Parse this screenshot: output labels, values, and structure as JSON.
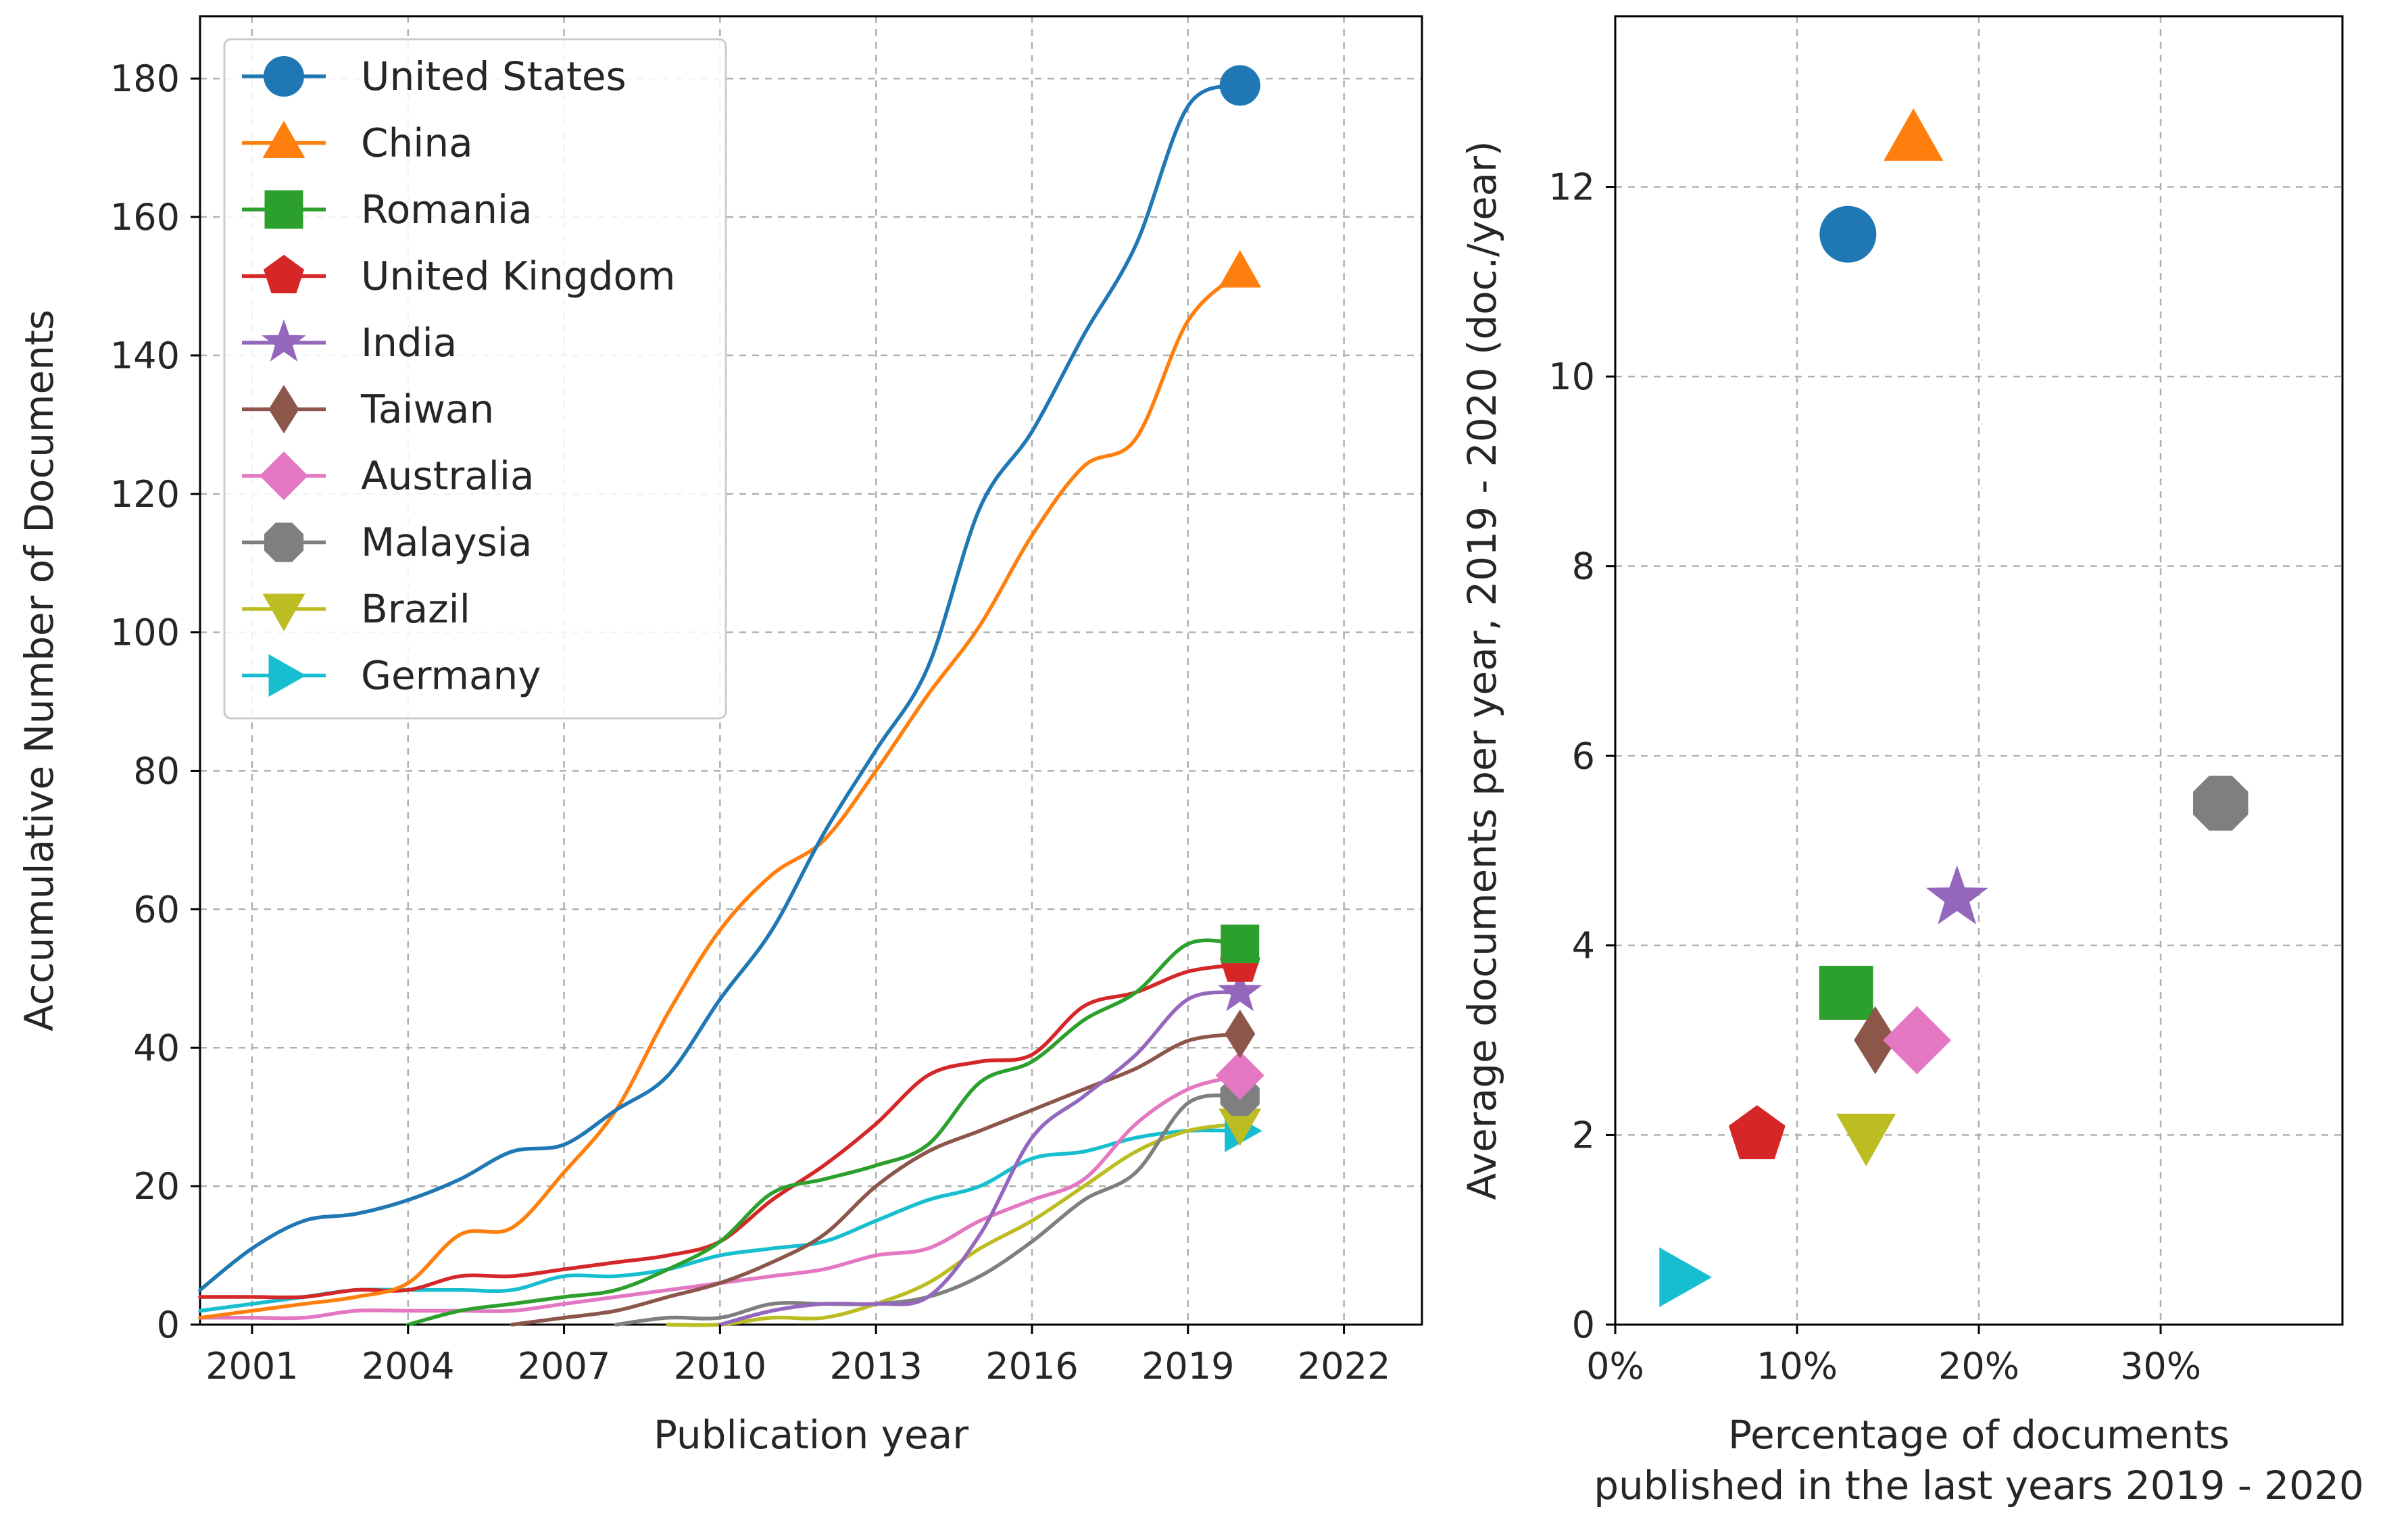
{
  "chart_data": [
    {
      "type": "line",
      "title": "",
      "xlabel": "Publication year",
      "ylabel": "Accumulative Number of Documents",
      "xlim": [
        2000,
        2023.5
      ],
      "ylim": [
        0,
        189
      ],
      "xticks": [
        2001,
        2004,
        2007,
        2010,
        2013,
        2016,
        2019,
        2022
      ],
      "yticks": [
        0,
        20,
        40,
        60,
        80,
        100,
        120,
        140,
        160,
        180
      ],
      "grid": true,
      "legend_position": "top-left",
      "series": [
        {
          "name": "United States",
          "marker": "circle",
          "color": "#1f77b4",
          "x": [
            2000,
            2001,
            2002,
            2003,
            2004,
            2005,
            2006,
            2007,
            2008,
            2009,
            2010,
            2011,
            2012,
            2013,
            2014,
            2015,
            2016,
            2017,
            2018,
            2019,
            2020
          ],
          "y": [
            5,
            11,
            15,
            16,
            18,
            21,
            25,
            26,
            31,
            36,
            47,
            57,
            71,
            83,
            95,
            118,
            129,
            143,
            156,
            176,
            179
          ]
        },
        {
          "name": "China",
          "marker": "triangle-up",
          "color": "#ff7f0e",
          "x": [
            2000,
            2001,
            2002,
            2003,
            2004,
            2005,
            2006,
            2007,
            2008,
            2009,
            2010,
            2011,
            2012,
            2013,
            2014,
            2015,
            2016,
            2017,
            2018,
            2019,
            2020
          ],
          "y": [
            1,
            2,
            3,
            4,
            6,
            13,
            14,
            22,
            31,
            45,
            57,
            65,
            70,
            80,
            91,
            101,
            114,
            124,
            128,
            145,
            152
          ]
        },
        {
          "name": "Romania",
          "marker": "square",
          "color": "#2ca02c",
          "x": [
            2004,
            2005,
            2006,
            2007,
            2008,
            2009,
            2010,
            2011,
            2012,
            2013,
            2014,
            2015,
            2016,
            2017,
            2018,
            2019,
            2020
          ],
          "y": [
            0,
            2,
            3,
            4,
            5,
            8,
            12,
            19,
            21,
            23,
            26,
            35,
            38,
            44,
            48,
            55,
            55
          ]
        },
        {
          "name": "United Kingdom",
          "marker": "pentagon",
          "color": "#d62728",
          "x": [
            2000,
            2001,
            2002,
            2003,
            2004,
            2005,
            2006,
            2007,
            2008,
            2009,
            2010,
            2011,
            2012,
            2013,
            2014,
            2015,
            2016,
            2017,
            2018,
            2019,
            2020
          ],
          "y": [
            4,
            4,
            4,
            5,
            5,
            7,
            7,
            8,
            9,
            10,
            12,
            18,
            23,
            29,
            36,
            38,
            39,
            46,
            48,
            51,
            52
          ]
        },
        {
          "name": "India",
          "marker": "star",
          "color": "#9467bd",
          "x": [
            2000,
            2001,
            2002,
            2003,
            2004,
            2005,
            2006,
            2007,
            2008,
            2009,
            2010,
            2011,
            2012,
            2013,
            2014,
            2015,
            2016,
            2017,
            2018,
            2019,
            2020
          ],
          "y": [
            null,
            null,
            null,
            null,
            null,
            null,
            null,
            null,
            null,
            null,
            0,
            2,
            3,
            3,
            4,
            13,
            27,
            33,
            39,
            47,
            48
          ]
        },
        {
          "name": "Taiwan",
          "marker": "diamond-thin",
          "color": "#8c564b",
          "x": [
            2006,
            2007,
            2008,
            2009,
            2010,
            2011,
            2012,
            2013,
            2014,
            2015,
            2016,
            2017,
            2018,
            2019,
            2020
          ],
          "y": [
            0,
            1,
            2,
            4,
            6,
            9,
            13,
            20,
            25,
            28,
            31,
            34,
            37,
            41,
            42
          ]
        },
        {
          "name": "Australia",
          "marker": "diamond",
          "color": "#e377c2",
          "x": [
            2000,
            2001,
            2002,
            2003,
            2004,
            2005,
            2006,
            2007,
            2008,
            2009,
            2010,
            2011,
            2012,
            2013,
            2014,
            2015,
            2016,
            2017,
            2018,
            2019,
            2020
          ],
          "y": [
            1,
            1,
            1,
            2,
            2,
            2,
            2,
            3,
            4,
            5,
            6,
            7,
            8,
            10,
            11,
            15,
            18,
            21,
            29,
            34,
            36
          ]
        },
        {
          "name": "Malaysia",
          "marker": "octagon",
          "color": "#7f7f7f",
          "x": [
            2008,
            2009,
            2010,
            2011,
            2012,
            2013,
            2014,
            2015,
            2016,
            2017,
            2018,
            2019,
            2020
          ],
          "y": [
            0,
            1,
            1,
            3,
            3,
            3,
            4,
            7,
            12,
            18,
            22,
            32,
            33
          ]
        },
        {
          "name": "Brazil",
          "marker": "triangle-down",
          "color": "#bcbd22",
          "x": [
            2009,
            2010,
            2011,
            2012,
            2013,
            2014,
            2015,
            2016,
            2017,
            2018,
            2019,
            2020
          ],
          "y": [
            0,
            0,
            1,
            1,
            3,
            6,
            11,
            15,
            20,
            25,
            28,
            29
          ]
        },
        {
          "name": "Germany",
          "marker": "triangle-right",
          "color": "#17becf",
          "x": [
            2000,
            2001,
            2002,
            2003,
            2004,
            2005,
            2006,
            2007,
            2008,
            2009,
            2010,
            2011,
            2012,
            2013,
            2014,
            2015,
            2016,
            2017,
            2018,
            2019,
            2020
          ],
          "y": [
            2,
            3,
            4,
            5,
            5,
            5,
            5,
            7,
            7,
            8,
            10,
            11,
            12,
            15,
            18,
            20,
            24,
            25,
            27,
            28,
            28
          ]
        }
      ]
    },
    {
      "type": "scatter",
      "title": "",
      "xlabel_lines": [
        "Percentage of documents",
        "published in the last years 2019 - 2020"
      ],
      "ylabel": "Average documents per year, 2019 - 2020 (doc./year)",
      "xlim": [
        0,
        40
      ],
      "ylim": [
        0,
        13.8
      ],
      "xticks": [
        0,
        10,
        20,
        30
      ],
      "xtick_labels": [
        "0%",
        "10%",
        "20%",
        "30%"
      ],
      "yticks": [
        0,
        2,
        4,
        6,
        8,
        10,
        12
      ],
      "grid": true,
      "points": [
        {
          "name": "United States",
          "marker": "circle",
          "color": "#1f77b4",
          "x": 12.8,
          "y": 11.5
        },
        {
          "name": "China",
          "marker": "triangle-up",
          "color": "#ff7f0e",
          "x": 16.4,
          "y": 12.5
        },
        {
          "name": "Romania",
          "marker": "square",
          "color": "#2ca02c",
          "x": 12.7,
          "y": 3.5
        },
        {
          "name": "United Kingdom",
          "marker": "pentagon",
          "color": "#d62728",
          "x": 7.8,
          "y": 2.0
        },
        {
          "name": "India",
          "marker": "star",
          "color": "#9467bd",
          "x": 18.8,
          "y": 4.5
        },
        {
          "name": "Taiwan",
          "marker": "diamond-thin",
          "color": "#8c564b",
          "x": 14.3,
          "y": 3.0
        },
        {
          "name": "Australia",
          "marker": "diamond",
          "color": "#e377c2",
          "x": 16.6,
          "y": 3.0
        },
        {
          "name": "Malaysia",
          "marker": "octagon",
          "color": "#7f7f7f",
          "x": 33.3,
          "y": 5.5
        },
        {
          "name": "Brazil",
          "marker": "triangle-down",
          "color": "#bcbd22",
          "x": 13.8,
          "y": 2.0
        },
        {
          "name": "Germany",
          "marker": "triangle-right",
          "color": "#17becf",
          "x": 3.6,
          "y": 0.5
        }
      ]
    }
  ]
}
